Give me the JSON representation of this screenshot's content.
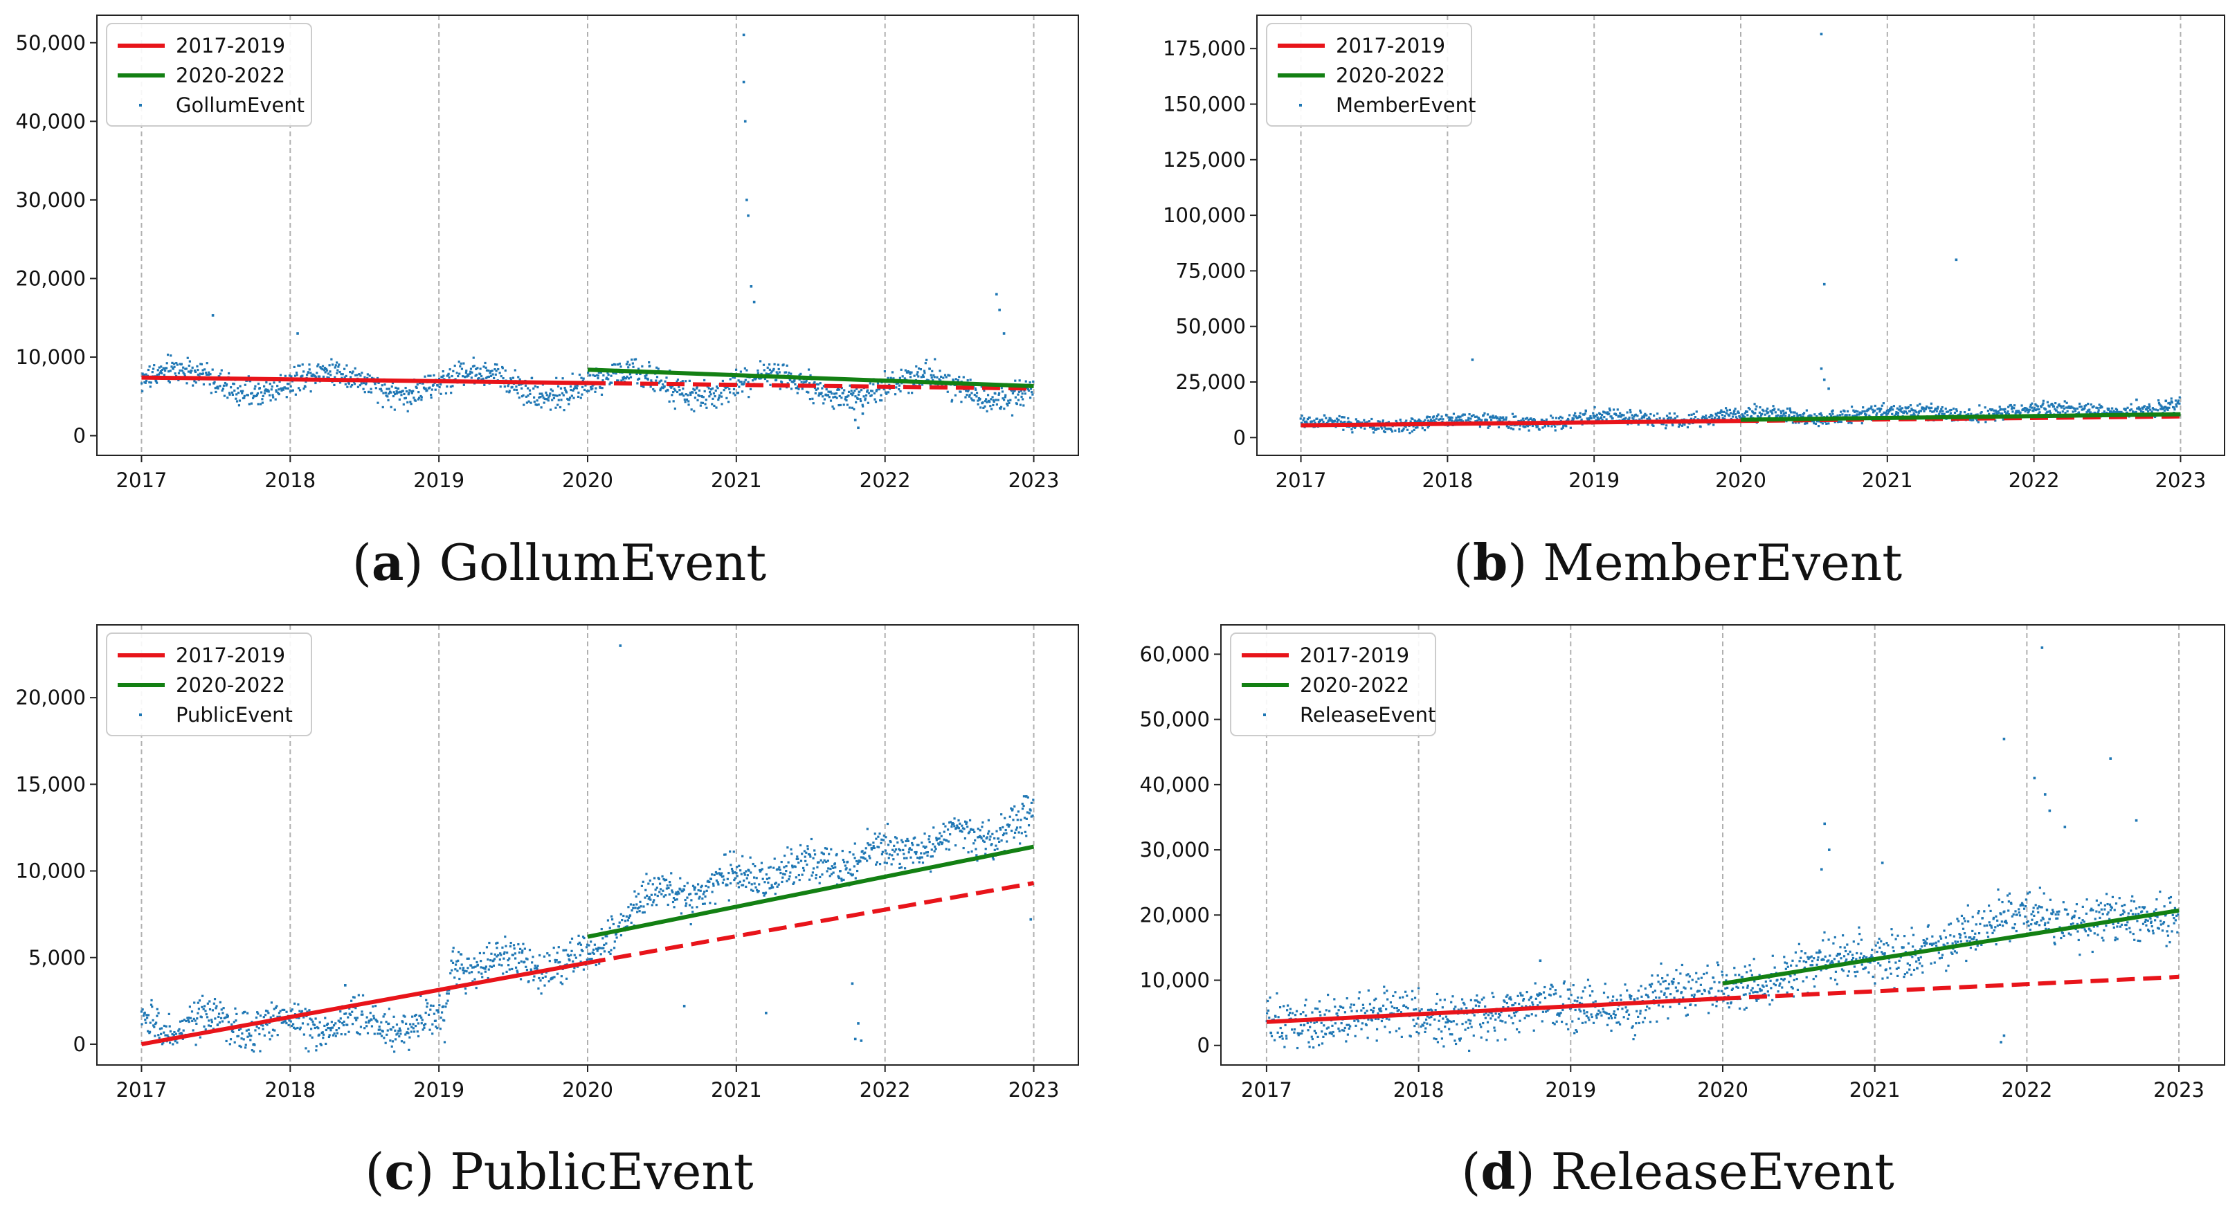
{
  "colors": {
    "fit_2017_2019": "#e8141a",
    "fit_2020_2022": "#138013",
    "points": "#1f77b4",
    "grid": "#b0b0b0",
    "axis": "#222222"
  },
  "chart_data": [
    {
      "type": "scatter",
      "caption_letter": "a",
      "caption_text": "GollumEvent",
      "legend": [
        "2017-2019",
        "2020-2022",
        "GollumEvent"
      ],
      "xticks": [
        "2017",
        "2018",
        "2019",
        "2020",
        "2021",
        "2022",
        "2023"
      ],
      "xlim": [
        2016.7,
        2023.3
      ],
      "ylim": [
        -2500,
        53500
      ],
      "yticks": [
        0,
        10000,
        20000,
        30000,
        40000,
        50000
      ],
      "ytick_labels": [
        "0",
        "10,000",
        "20,000",
        "30,000",
        "40,000",
        "50,000"
      ],
      "trend_2017_2019": {
        "x": [
          2017,
          2020
        ],
        "y": [
          7400,
          6700
        ]
      },
      "trend_2017_2019_projection": {
        "x": [
          2020,
          2023
        ],
        "y": [
          6700,
          6000
        ]
      },
      "trend_2020_2022": {
        "x": [
          2020,
          2023
        ],
        "y": [
          8400,
          6300
        ]
      },
      "scatter_spec": {
        "base": 7000,
        "amp": 1500,
        "slope": -150,
        "noise": 2200,
        "season": 1
      },
      "outliers": [
        [
          2021.05,
          51000
        ],
        [
          2021.05,
          45000
        ],
        [
          2021.06,
          40000
        ],
        [
          2021.07,
          30000
        ],
        [
          2021.08,
          28000
        ],
        [
          2021.1,
          19000
        ],
        [
          2021.12,
          17000
        ],
        [
          2017.48,
          15300
        ],
        [
          2022.75,
          18000
        ],
        [
          2022.77,
          16000
        ],
        [
          2022.8,
          13000
        ],
        [
          2021.8,
          2000
        ],
        [
          2021.82,
          1000
        ],
        [
          2021.85,
          2800
        ],
        [
          2018.05,
          13000
        ]
      ]
    },
    {
      "type": "scatter",
      "caption_letter": "b",
      "caption_text": "MemberEvent",
      "legend": [
        "2017-2019",
        "2020-2022",
        "MemberEvent"
      ],
      "xticks": [
        "2017",
        "2018",
        "2019",
        "2020",
        "2021",
        "2022",
        "2023"
      ],
      "xlim": [
        2016.7,
        2023.3
      ],
      "ylim": [
        -8000,
        190000
      ],
      "yticks": [
        0,
        25000,
        50000,
        75000,
        100000,
        125000,
        150000,
        175000
      ],
      "ytick_labels": [
        "0",
        "25,000",
        "50,000",
        "75,000",
        "100,000",
        "125,000",
        "150,000",
        "175,000"
      ],
      "trend_2017_2019": {
        "x": [
          2017,
          2020
        ],
        "y": [
          5500,
          7500
        ]
      },
      "trend_2017_2019_projection": {
        "x": [
          2020,
          2023
        ],
        "y": [
          7500,
          9500
        ]
      },
      "trend_2020_2022": {
        "x": [
          2020,
          2023
        ],
        "y": [
          8000,
          10500
        ]
      },
      "scatter_spec": {
        "base": 5500,
        "amp": 1500,
        "slope": 1300,
        "noise": 4000,
        "season": 1
      },
      "outliers": [
        [
          2020.55,
          181500
        ],
        [
          2021.47,
          80000
        ],
        [
          2020.57,
          69000
        ],
        [
          2020.55,
          31000
        ],
        [
          2020.57,
          26000
        ],
        [
          2020.6,
          22000
        ],
        [
          2018.17,
          35000
        ],
        [
          2022.7,
          17000
        ],
        [
          2022.9,
          16500
        ]
      ]
    },
    {
      "type": "scatter",
      "caption_letter": "c",
      "caption_text": "PublicEvent",
      "legend": [
        "2017-2019",
        "2020-2022",
        "PublicEvent"
      ],
      "xticks": [
        "2017",
        "2018",
        "2019",
        "2020",
        "2021",
        "2022",
        "2023"
      ],
      "xlim": [
        2016.7,
        2023.3
      ],
      "ylim": [
        -1200,
        24200
      ],
      "yticks": [
        0,
        5000,
        10000,
        15000,
        20000
      ],
      "ytick_labels": [
        "0",
        "5,000",
        "10,000",
        "15,000",
        "20,000"
      ],
      "trend_2017_2019": {
        "x": [
          2017,
          2020
        ],
        "y": [
          0,
          4700
        ]
      },
      "trend_2017_2019_projection": {
        "x": [
          2020,
          2023
        ],
        "y": [
          4700,
          9300
        ]
      },
      "trend_2020_2022": {
        "x": [
          2020,
          2023
        ],
        "y": [
          6200,
          11400
        ]
      },
      "scatter_spec": {
        "base": 0,
        "amp": 500,
        "slope": 0,
        "noise": 1400,
        "season": 2,
        "piecewise": [
          [
            2017,
            1100
          ],
          [
            2019.05,
            1300
          ],
          [
            2019.08,
            4600
          ],
          [
            2020,
            4800
          ],
          [
            2020.3,
            8000
          ],
          [
            2021,
            9500
          ],
          [
            2022,
            11000
          ],
          [
            2023,
            12800
          ]
        ]
      },
      "outliers": [
        [
          2020.22,
          23000
        ],
        [
          2018.37,
          3400
        ],
        [
          2021.8,
          300
        ],
        [
          2021.82,
          1200
        ],
        [
          2021.78,
          3500
        ],
        [
          2021.84,
          200
        ],
        [
          2020.65,
          2200
        ],
        [
          2021.2,
          1800
        ],
        [
          2022.95,
          14300
        ],
        [
          2022.98,
          7200
        ]
      ]
    },
    {
      "type": "scatter",
      "caption_letter": "d",
      "caption_text": "ReleaseEvent",
      "legend": [
        "2017-2019",
        "2020-2022",
        "ReleaseEvent"
      ],
      "xticks": [
        "2017",
        "2018",
        "2019",
        "2020",
        "2021",
        "2022",
        "2023"
      ],
      "xlim": [
        2016.7,
        2023.3
      ],
      "ylim": [
        -3000,
        64500
      ],
      "yticks": [
        0,
        10000,
        20000,
        30000,
        40000,
        50000,
        60000
      ],
      "ytick_labels": [
        "0",
        "10,000",
        "20,000",
        "30,000",
        "40,000",
        "50,000",
        "60,000"
      ],
      "trend_2017_2019": {
        "x": [
          2017,
          2020
        ],
        "y": [
          3600,
          7200
        ]
      },
      "trend_2017_2019_projection": {
        "x": [
          2020,
          2023
        ],
        "y": [
          7200,
          10500
        ]
      },
      "trend_2020_2022": {
        "x": [
          2020,
          2023
        ],
        "y": [
          9500,
          20700
        ]
      },
      "scatter_spec": {
        "base": 0,
        "amp": 800,
        "slope": 0,
        "noise": 4500,
        "season": 1,
        "piecewise": [
          [
            2017,
            3500
          ],
          [
            2018,
            4500
          ],
          [
            2019,
            5500
          ],
          [
            2019.9,
            8000
          ],
          [
            2020.4,
            11000
          ],
          [
            2021,
            13500
          ],
          [
            2021.5,
            16000
          ],
          [
            2022,
            20000
          ],
          [
            2023,
            18500
          ]
        ]
      },
      "outliers": [
        [
          2022.1,
          61000
        ],
        [
          2021.85,
          47000
        ],
        [
          2022.05,
          41000
        ],
        [
          2022.55,
          44000
        ],
        [
          2022.12,
          38500
        ],
        [
          2020.67,
          34000
        ],
        [
          2020.7,
          30000
        ],
        [
          2020.65,
          27000
        ],
        [
          2021.05,
          28000
        ],
        [
          2022.72,
          34500
        ],
        [
          2022.25,
          33500
        ],
        [
          2018.8,
          13000
        ],
        [
          2021.83,
          500
        ],
        [
          2021.85,
          1500
        ],
        [
          2022.15,
          36000
        ]
      ]
    }
  ]
}
